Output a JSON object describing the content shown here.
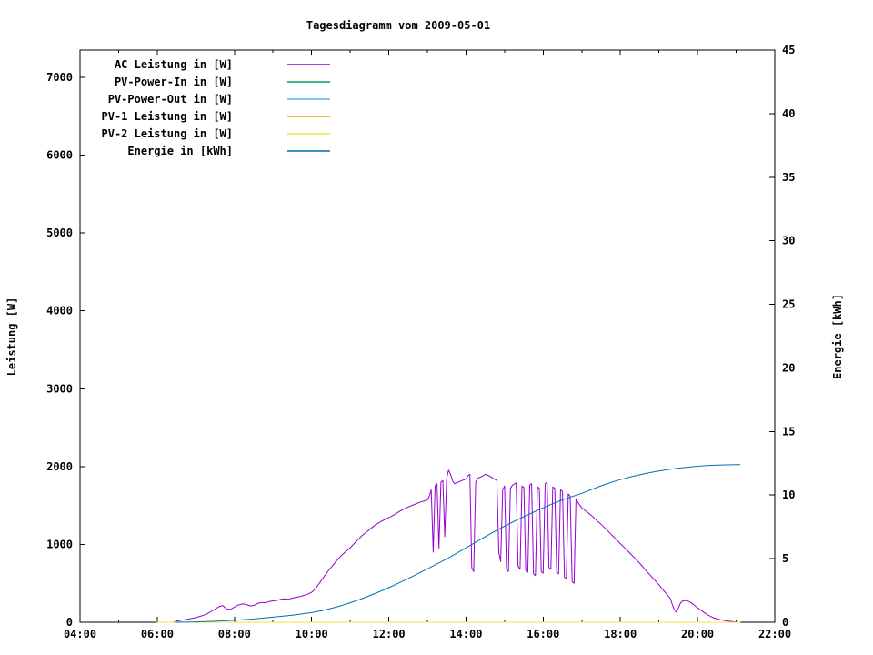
{
  "page": {
    "background": "#ffffff",
    "text_color": "#000000"
  },
  "chart_data": {
    "type": "line",
    "title": "Tagesdiagramm vom 2009-05-01",
    "xlabel": "",
    "ylabel": "Leistung [W]",
    "y2label": "Energie [kWh]",
    "grid": false,
    "legend_position": "top-left-inside",
    "x_range": [
      4,
      22
    ],
    "y_top_value": 7350,
    "y2_top_value": 45,
    "x_ticks": [
      {
        "t": 4,
        "label": "04:00"
      },
      {
        "t": 6,
        "label": "06:00"
      },
      {
        "t": 8,
        "label": "08:00"
      },
      {
        "t": 10,
        "label": "10:00"
      },
      {
        "t": 12,
        "label": "12:00"
      },
      {
        "t": 14,
        "label": "14:00"
      },
      {
        "t": 16,
        "label": "16:00"
      },
      {
        "t": 18,
        "label": "18:00"
      },
      {
        "t": 20,
        "label": "20:00"
      },
      {
        "t": 22,
        "label": "22:00"
      }
    ],
    "x_minor_ticks": [
      5,
      7,
      9,
      11,
      13,
      15,
      17,
      19,
      21
    ],
    "y_ticks": [
      {
        "v": 0,
        "label": "0"
      },
      {
        "v": 1000,
        "label": "1000"
      },
      {
        "v": 2000,
        "label": "2000"
      },
      {
        "v": 3000,
        "label": "3000"
      },
      {
        "v": 4000,
        "label": "4000"
      },
      {
        "v": 5000,
        "label": "5000"
      },
      {
        "v": 6000,
        "label": "6000"
      },
      {
        "v": 7000,
        "label": "7000"
      }
    ],
    "y2_ticks": [
      {
        "v": 0,
        "label": "0"
      },
      {
        "v": 5,
        "label": "5"
      },
      {
        "v": 10,
        "label": "10"
      },
      {
        "v": 15,
        "label": "15"
      },
      {
        "v": 20,
        "label": "20"
      },
      {
        "v": 25,
        "label": "25"
      },
      {
        "v": 30,
        "label": "30"
      },
      {
        "v": 35,
        "label": "35"
      },
      {
        "v": 40,
        "label": "40"
      },
      {
        "v": 45,
        "label": "45"
      }
    ],
    "series": [
      {
        "name": "AC Leistung in [W]",
        "color": "#9400D3",
        "axis": "y1",
        "points": [
          [
            6.42,
            0
          ],
          [
            6.5,
            15
          ],
          [
            6.6,
            25
          ],
          [
            6.75,
            35
          ],
          [
            6.9,
            50
          ],
          [
            7.0,
            60
          ],
          [
            7.1,
            75
          ],
          [
            7.2,
            90
          ],
          [
            7.3,
            110
          ],
          [
            7.4,
            140
          ],
          [
            7.5,
            170
          ],
          [
            7.6,
            200
          ],
          [
            7.7,
            215
          ],
          [
            7.75,
            190
          ],
          [
            7.8,
            170
          ],
          [
            7.9,
            165
          ],
          [
            8.0,
            195
          ],
          [
            8.1,
            220
          ],
          [
            8.2,
            235
          ],
          [
            8.3,
            230
          ],
          [
            8.4,
            210
          ],
          [
            8.5,
            215
          ],
          [
            8.6,
            240
          ],
          [
            8.7,
            255
          ],
          [
            8.8,
            250
          ],
          [
            8.9,
            265
          ],
          [
            9.0,
            275
          ],
          [
            9.1,
            280
          ],
          [
            9.2,
            295
          ],
          [
            9.3,
            300
          ],
          [
            9.4,
            295
          ],
          [
            9.5,
            310
          ],
          [
            9.6,
            320
          ],
          [
            9.7,
            330
          ],
          [
            9.8,
            345
          ],
          [
            9.9,
            360
          ],
          [
            10.0,
            385
          ],
          [
            10.1,
            430
          ],
          [
            10.2,
            500
          ],
          [
            10.3,
            570
          ],
          [
            10.4,
            640
          ],
          [
            10.5,
            700
          ],
          [
            10.6,
            760
          ],
          [
            10.7,
            820
          ],
          [
            10.8,
            870
          ],
          [
            10.9,
            915
          ],
          [
            11.0,
            955
          ],
          [
            11.1,
            1010
          ],
          [
            11.2,
            1060
          ],
          [
            11.3,
            1110
          ],
          [
            11.4,
            1150
          ],
          [
            11.5,
            1190
          ],
          [
            11.6,
            1230
          ],
          [
            11.7,
            1265
          ],
          [
            11.8,
            1295
          ],
          [
            11.9,
            1320
          ],
          [
            12.0,
            1345
          ],
          [
            12.1,
            1370
          ],
          [
            12.2,
            1400
          ],
          [
            12.3,
            1430
          ],
          [
            12.4,
            1455
          ],
          [
            12.5,
            1480
          ],
          [
            12.6,
            1500
          ],
          [
            12.7,
            1520
          ],
          [
            12.8,
            1540
          ],
          [
            12.9,
            1555
          ],
          [
            13.0,
            1570
          ],
          [
            13.05,
            1620
          ],
          [
            13.1,
            1700
          ],
          [
            13.15,
            900
          ],
          [
            13.2,
            1750
          ],
          [
            13.25,
            1780
          ],
          [
            13.3,
            950
          ],
          [
            13.35,
            1800
          ],
          [
            13.4,
            1820
          ],
          [
            13.45,
            1100
          ],
          [
            13.5,
            1850
          ],
          [
            13.55,
            1955
          ],
          [
            13.6,
            1900
          ],
          [
            13.65,
            1820
          ],
          [
            13.7,
            1780
          ],
          [
            13.8,
            1800
          ],
          [
            13.9,
            1820
          ],
          [
            14.0,
            1840
          ],
          [
            14.05,
            1880
          ],
          [
            14.1,
            1900
          ],
          [
            14.15,
            700
          ],
          [
            14.2,
            650
          ],
          [
            14.25,
            1800
          ],
          [
            14.3,
            1850
          ],
          [
            14.4,
            1870
          ],
          [
            14.5,
            1900
          ],
          [
            14.6,
            1880
          ],
          [
            14.7,
            1850
          ],
          [
            14.8,
            1820
          ],
          [
            14.85,
            900
          ],
          [
            14.9,
            780
          ],
          [
            14.95,
            1700
          ],
          [
            15.0,
            1750
          ],
          [
            15.05,
            680
          ],
          [
            15.1,
            650
          ],
          [
            15.15,
            1720
          ],
          [
            15.2,
            1760
          ],
          [
            15.3,
            1790
          ],
          [
            15.35,
            720
          ],
          [
            15.4,
            680
          ],
          [
            15.45,
            1750
          ],
          [
            15.5,
            1730
          ],
          [
            15.55,
            660
          ],
          [
            15.6,
            640
          ],
          [
            15.65,
            1760
          ],
          [
            15.7,
            1780
          ],
          [
            15.75,
            620
          ],
          [
            15.8,
            600
          ],
          [
            15.85,
            1740
          ],
          [
            15.9,
            1720
          ],
          [
            15.95,
            650
          ],
          [
            16.0,
            630
          ],
          [
            16.05,
            1780
          ],
          [
            16.1,
            1800
          ],
          [
            16.15,
            700
          ],
          [
            16.2,
            680
          ],
          [
            16.25,
            1740
          ],
          [
            16.3,
            1720
          ],
          [
            16.35,
            640
          ],
          [
            16.4,
            620
          ],
          [
            16.45,
            1700
          ],
          [
            16.5,
            1680
          ],
          [
            16.55,
            580
          ],
          [
            16.6,
            560
          ],
          [
            16.65,
            1650
          ],
          [
            16.7,
            1620
          ],
          [
            16.75,
            520
          ],
          [
            16.8,
            500
          ],
          [
            16.85,
            1580
          ],
          [
            16.9,
            1540
          ],
          [
            16.95,
            1500
          ],
          [
            17.0,
            1470
          ],
          [
            17.1,
            1430
          ],
          [
            17.2,
            1390
          ],
          [
            17.3,
            1350
          ],
          [
            17.4,
            1300
          ],
          [
            17.5,
            1260
          ],
          [
            17.6,
            1210
          ],
          [
            17.7,
            1160
          ],
          [
            17.8,
            1110
          ],
          [
            17.9,
            1060
          ],
          [
            18.0,
            1010
          ],
          [
            18.1,
            960
          ],
          [
            18.2,
            910
          ],
          [
            18.3,
            860
          ],
          [
            18.4,
            810
          ],
          [
            18.5,
            760
          ],
          [
            18.6,
            700
          ],
          [
            18.7,
            645
          ],
          [
            18.8,
            590
          ],
          [
            18.9,
            535
          ],
          [
            19.0,
            480
          ],
          [
            19.1,
            420
          ],
          [
            19.2,
            360
          ],
          [
            19.3,
            300
          ],
          [
            19.35,
            220
          ],
          [
            19.4,
            160
          ],
          [
            19.45,
            130
          ],
          [
            19.5,
            180
          ],
          [
            19.55,
            240
          ],
          [
            19.6,
            270
          ],
          [
            19.7,
            280
          ],
          [
            19.8,
            260
          ],
          [
            19.9,
            225
          ],
          [
            20.0,
            185
          ],
          [
            20.1,
            150
          ],
          [
            20.2,
            115
          ],
          [
            20.3,
            85
          ],
          [
            20.4,
            60
          ],
          [
            20.5,
            45
          ],
          [
            20.6,
            32
          ],
          [
            20.7,
            22
          ],
          [
            20.8,
            14
          ],
          [
            20.9,
            8
          ],
          [
            21.0,
            4
          ],
          [
            21.05,
            0
          ]
        ]
      },
      {
        "name": "PV-Power-In in [W]",
        "color": "#009E73",
        "axis": "y1",
        "points": [
          [
            6.0,
            0
          ],
          [
            21.1,
            0
          ]
        ]
      },
      {
        "name": "PV-Power-Out in [W]",
        "color": "#56B4E9",
        "axis": "y1",
        "points": [
          [
            6.0,
            0
          ],
          [
            21.1,
            0
          ]
        ]
      },
      {
        "name": "PV-1 Leistung in [W]",
        "color": "#E69F00",
        "axis": "y1",
        "points": [
          [
            6.0,
            0
          ],
          [
            21.1,
            0
          ]
        ]
      },
      {
        "name": "PV-2 Leistung in [W]",
        "color": "#F0E442",
        "axis": "y1",
        "points": [
          [
            6.0,
            0
          ],
          [
            21.1,
            0
          ]
        ]
      },
      {
        "name": "Energie in [kWh]",
        "color": "#0072B2",
        "axis": "y2",
        "points": [
          [
            6.5,
            0
          ],
          [
            7.0,
            0.03
          ],
          [
            7.5,
            0.08
          ],
          [
            8.0,
            0.15
          ],
          [
            8.5,
            0.26
          ],
          [
            9.0,
            0.4
          ],
          [
            9.5,
            0.56
          ],
          [
            10.0,
            0.76
          ],
          [
            10.25,
            0.9
          ],
          [
            10.5,
            1.08
          ],
          [
            10.75,
            1.29
          ],
          [
            11.0,
            1.53
          ],
          [
            11.25,
            1.79
          ],
          [
            11.5,
            2.08
          ],
          [
            11.75,
            2.39
          ],
          [
            12.0,
            2.72
          ],
          [
            12.25,
            3.07
          ],
          [
            12.5,
            3.43
          ],
          [
            12.75,
            3.81
          ],
          [
            13.0,
            4.2
          ],
          [
            13.25,
            4.59
          ],
          [
            13.5,
            4.98
          ],
          [
            13.75,
            5.41
          ],
          [
            14.0,
            5.85
          ],
          [
            14.25,
            6.29
          ],
          [
            14.5,
            6.73
          ],
          [
            14.75,
            7.16
          ],
          [
            15.0,
            7.56
          ],
          [
            15.25,
            7.94
          ],
          [
            15.5,
            8.31
          ],
          [
            15.75,
            8.66
          ],
          [
            16.0,
            9.0
          ],
          [
            16.25,
            9.33
          ],
          [
            16.5,
            9.62
          ],
          [
            16.75,
            9.89
          ],
          [
            17.0,
            10.14
          ],
          [
            17.25,
            10.44
          ],
          [
            17.5,
            10.73
          ],
          [
            17.75,
            10.99
          ],
          [
            18.0,
            11.22
          ],
          [
            18.25,
            11.42
          ],
          [
            18.5,
            11.6
          ],
          [
            18.75,
            11.76
          ],
          [
            19.0,
            11.9
          ],
          [
            19.25,
            12.02
          ],
          [
            19.5,
            12.12
          ],
          [
            19.75,
            12.2
          ],
          [
            20.0,
            12.27
          ],
          [
            20.25,
            12.32
          ],
          [
            20.5,
            12.36
          ],
          [
            20.75,
            12.38
          ],
          [
            21.0,
            12.4
          ],
          [
            21.1,
            12.4
          ]
        ]
      }
    ]
  }
}
